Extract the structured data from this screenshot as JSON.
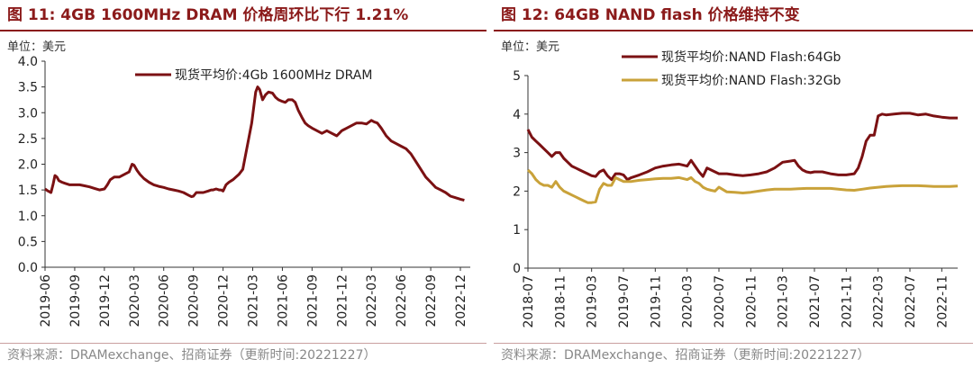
{
  "chart_data": [
    {
      "type": "line",
      "title": "图 11:  4GB 1600MHz DRAM 价格周环比下行 1.21%",
      "unit_label": "单位：美元",
      "source": "资料来源：DRAMexchange、招商证券（更新时间:20221227）",
      "ylim": [
        0,
        4.0
      ],
      "yticks": [
        "0.0",
        "0.5",
        "1.0",
        "1.5",
        "2.0",
        "2.5",
        "3.0",
        "3.5",
        "4.0"
      ],
      "xlim": [
        0,
        43
      ],
      "xticks": [
        {
          "x": 0,
          "label": "2019-06"
        },
        {
          "x": 3,
          "label": "2019-09"
        },
        {
          "x": 6,
          "label": "2019-12"
        },
        {
          "x": 9,
          "label": "2020-03"
        },
        {
          "x": 12,
          "label": "2020-06"
        },
        {
          "x": 15,
          "label": "2020-09"
        },
        {
          "x": 18,
          "label": "2020-12"
        },
        {
          "x": 21,
          "label": "2021-03"
        },
        {
          "x": 24,
          "label": "2021-06"
        },
        {
          "x": 27,
          "label": "2021-09"
        },
        {
          "x": 30,
          "label": "2021-12"
        },
        {
          "x": 33,
          "label": "2022-03"
        },
        {
          "x": 36,
          "label": "2022-06"
        },
        {
          "x": 39,
          "label": "2022-09"
        },
        {
          "x": 42,
          "label": "2022-12"
        }
      ],
      "legend": "top",
      "series": [
        {
          "name": "现货平均价:4Gb 1600MHz DRAM",
          "color": "#7b1113",
          "x": [
            0,
            0.3,
            0.6,
            0.8,
            1.0,
            1.2,
            1.4,
            1.7,
            2.0,
            2.5,
            3.0,
            3.5,
            4.0,
            4.5,
            5.0,
            5.5,
            6.0,
            6.3,
            6.6,
            7.0,
            7.5,
            8.0,
            8.5,
            8.8,
            9.0,
            9.3,
            9.6,
            10.0,
            10.5,
            11.0,
            11.5,
            12.0,
            12.5,
            13.0,
            13.5,
            14.0,
            14.5,
            14.8,
            15.0,
            15.3,
            15.6,
            16.0,
            16.5,
            16.8,
            17.0,
            17.3,
            17.6,
            17.8,
            18.0,
            18.3,
            18.6,
            19.0,
            19.3,
            19.6,
            19.8,
            20.0,
            20.3,
            20.6,
            20.9,
            21.1,
            21.3,
            21.5,
            21.7,
            22.0,
            22.3,
            22.6,
            23.0,
            23.3,
            23.6,
            24.0,
            24.3,
            24.6,
            25.0,
            25.3,
            25.6,
            26.0,
            26.3,
            26.6,
            27.0,
            27.5,
            28.0,
            28.5,
            29.0,
            29.5,
            30.0,
            30.5,
            31.0,
            31.5,
            32.0,
            32.5,
            33.0,
            33.3,
            33.6,
            34.0,
            34.5,
            35.0,
            35.5,
            36.0,
            36.5,
            37.0,
            37.5,
            38.0,
            38.5,
            39.0,
            39.5,
            40.0,
            40.5,
            41.0,
            41.5,
            42.0,
            42.4
          ],
          "values": [
            1.52,
            1.48,
            1.45,
            1.6,
            1.78,
            1.75,
            1.68,
            1.65,
            1.63,
            1.6,
            1.6,
            1.6,
            1.58,
            1.56,
            1.53,
            1.5,
            1.52,
            1.6,
            1.7,
            1.75,
            1.75,
            1.8,
            1.85,
            2.0,
            1.98,
            1.88,
            1.8,
            1.72,
            1.65,
            1.6,
            1.57,
            1.55,
            1.52,
            1.5,
            1.48,
            1.45,
            1.4,
            1.37,
            1.38,
            1.45,
            1.45,
            1.45,
            1.48,
            1.5,
            1.5,
            1.52,
            1.5,
            1.5,
            1.48,
            1.6,
            1.65,
            1.7,
            1.75,
            1.8,
            1.85,
            1.9,
            2.2,
            2.5,
            2.8,
            3.1,
            3.4,
            3.5,
            3.45,
            3.25,
            3.35,
            3.4,
            3.38,
            3.3,
            3.25,
            3.22,
            3.2,
            3.25,
            3.25,
            3.2,
            3.05,
            2.9,
            2.8,
            2.75,
            2.7,
            2.65,
            2.6,
            2.65,
            2.6,
            2.55,
            2.65,
            2.7,
            2.75,
            2.8,
            2.8,
            2.78,
            2.85,
            2.82,
            2.8,
            2.7,
            2.55,
            2.45,
            2.4,
            2.35,
            2.3,
            2.2,
            2.05,
            1.9,
            1.75,
            1.65,
            1.55,
            1.5,
            1.45,
            1.38,
            1.35,
            1.32,
            1.3
          ]
        }
      ]
    },
    {
      "type": "line",
      "title": "图 12:  64GB NAND flash 价格维持不变",
      "unit_label": "单位：美元",
      "source": "资料来源：DRAMexchange、招商证券（更新时间:20221227）",
      "ylim": [
        0,
        5
      ],
      "yticks": [
        "0",
        "1",
        "2",
        "3",
        "4",
        "5"
      ],
      "xlim": [
        0,
        54
      ],
      "xticks": [
        {
          "x": 0,
          "label": "2018-07"
        },
        {
          "x": 4,
          "label": "2018-11"
        },
        {
          "x": 8,
          "label": "2019-03"
        },
        {
          "x": 12,
          "label": "2019-07"
        },
        {
          "x": 16,
          "label": "2019-11"
        },
        {
          "x": 20,
          "label": "2020-03"
        },
        {
          "x": 24,
          "label": "2020-07"
        },
        {
          "x": 28,
          "label": "2020-11"
        },
        {
          "x": 32,
          "label": "2021-03"
        },
        {
          "x": 36,
          "label": "2021-07"
        },
        {
          "x": 40,
          "label": "2021-11"
        },
        {
          "x": 44,
          "label": "2022-03"
        },
        {
          "x": 48,
          "label": "2022-07"
        },
        {
          "x": 52,
          "label": "2022-11"
        }
      ],
      "legend": "top",
      "series": [
        {
          "name": "现货平均价:NAND Flash:64Gb",
          "color": "#7b1113",
          "x": [
            0,
            0.5,
            1,
            1.5,
            2,
            2.5,
            3,
            3.5,
            4,
            4.5,
            5,
            5.5,
            6,
            6.5,
            7,
            7.5,
            8,
            8.5,
            9,
            9.5,
            10,
            10.5,
            11,
            11.5,
            12,
            12.5,
            13,
            14,
            15,
            16,
            17,
            18,
            19,
            20,
            20.5,
            21,
            21.5,
            22,
            22.5,
            23,
            23.5,
            24,
            25,
            26,
            27,
            28,
            29,
            30,
            31,
            32,
            33,
            33.5,
            34,
            34.5,
            35,
            35.5,
            36,
            37,
            38,
            39,
            40,
            41,
            41.5,
            42,
            42.5,
            43,
            43.5,
            44,
            44.5,
            45,
            46,
            47,
            48,
            49,
            50,
            51,
            52,
            53,
            54
          ],
          "values": [
            3.6,
            3.4,
            3.3,
            3.2,
            3.1,
            3.0,
            2.9,
            3.0,
            3.0,
            2.85,
            2.75,
            2.65,
            2.6,
            2.55,
            2.5,
            2.45,
            2.4,
            2.38,
            2.5,
            2.55,
            2.4,
            2.3,
            2.45,
            2.45,
            2.42,
            2.3,
            2.35,
            2.42,
            2.5,
            2.6,
            2.65,
            2.68,
            2.7,
            2.65,
            2.8,
            2.65,
            2.5,
            2.38,
            2.6,
            2.55,
            2.5,
            2.45,
            2.45,
            2.42,
            2.4,
            2.42,
            2.45,
            2.5,
            2.6,
            2.75,
            2.78,
            2.8,
            2.65,
            2.55,
            2.5,
            2.48,
            2.5,
            2.5,
            2.45,
            2.42,
            2.42,
            2.45,
            2.6,
            2.9,
            3.3,
            3.45,
            3.45,
            3.95,
            4.0,
            3.98,
            4.0,
            4.02,
            4.02,
            3.98,
            4.0,
            3.95,
            3.92,
            3.9,
            3.9
          ]
        },
        {
          "name": "现货平均价:NAND Flash:32Gb",
          "color": "#c9a23a",
          "x": [
            0,
            0.5,
            1,
            1.5,
            2,
            2.5,
            3,
            3.5,
            4,
            4.5,
            5,
            5.5,
            6,
            6.5,
            7,
            7.5,
            8,
            8.5,
            9,
            9.5,
            10,
            10.5,
            11,
            11.5,
            12,
            12.5,
            13,
            14,
            15,
            16,
            17,
            18,
            19,
            20,
            20.5,
            21,
            21.5,
            22,
            22.5,
            23,
            23.5,
            24,
            25,
            26,
            27,
            28,
            29,
            30,
            31,
            32,
            33,
            34,
            35,
            36,
            37,
            38,
            39,
            40,
            41,
            42,
            43,
            44,
            45,
            46,
            47,
            48,
            49,
            50,
            51,
            52,
            53,
            54
          ],
          "values": [
            2.55,
            2.45,
            2.3,
            2.2,
            2.15,
            2.15,
            2.1,
            2.25,
            2.1,
            2.0,
            1.95,
            1.9,
            1.85,
            1.8,
            1.75,
            1.7,
            1.7,
            1.72,
            2.05,
            2.2,
            2.15,
            2.15,
            2.35,
            2.3,
            2.25,
            2.25,
            2.25,
            2.28,
            2.3,
            2.32,
            2.33,
            2.33,
            2.35,
            2.3,
            2.35,
            2.25,
            2.2,
            2.1,
            2.05,
            2.02,
            2.0,
            2.1,
            1.98,
            1.97,
            1.95,
            1.97,
            2.0,
            2.03,
            2.05,
            2.05,
            2.05,
            2.06,
            2.07,
            2.07,
            2.07,
            2.07,
            2.05,
            2.03,
            2.02,
            2.05,
            2.08,
            2.1,
            2.12,
            2.13,
            2.14,
            2.14,
            2.14,
            2.13,
            2.12,
            2.12,
            2.12,
            2.13
          ]
        }
      ]
    }
  ]
}
